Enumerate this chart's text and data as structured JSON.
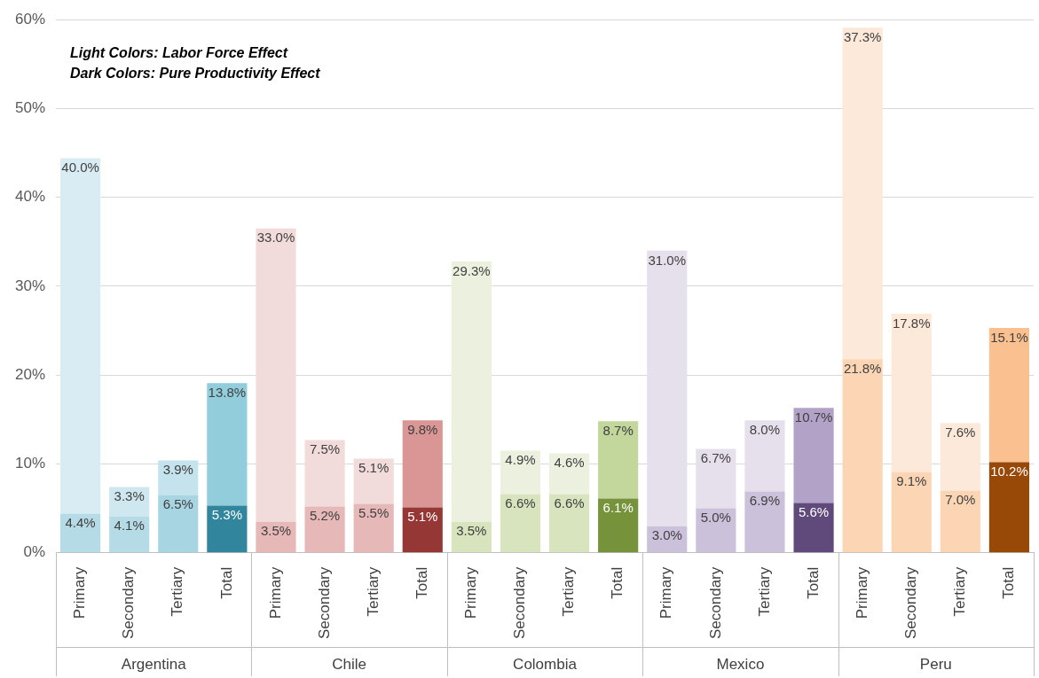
{
  "chart_data": {
    "type": "bar",
    "stacked": true,
    "title": "Light Colors: Labor Force Effect",
    "subtitle": "Dark Colors: Pure Productivity Effect",
    "categories": [
      "Primary",
      "Secondary",
      "Tertiary",
      "Total",
      "Primary",
      "Secondary",
      "Tertiary",
      "Total",
      "Primary",
      "Secondary",
      "Tertiary",
      "Total",
      "Primary",
      "Secondary",
      "Tertiary",
      "Total",
      "Primary",
      "Secondary",
      "Tertiary",
      "Total"
    ],
    "annotations": [
      "Argentina",
      "Chile",
      "Colombia",
      "Mexico",
      "Peru"
    ],
    "series": [
      {
        "values": [
          4.4,
          4.1,
          6.5,
          5.3,
          3.5,
          5.2,
          5.5,
          5.1,
          3.5,
          6.6,
          6.6,
          6.1,
          3.0,
          5.0,
          6.9,
          5.6,
          21.8,
          9.1,
          7.0,
          10.2
        ],
        "value_labels": [
          "4.4%",
          "4.1%",
          "6.5%",
          "5.3%",
          "3.5%",
          "5.2%",
          "5.5%",
          "5.1%",
          "3.5%",
          "6.6%",
          "6.6%",
          "6.1%",
          "3.0%",
          "5.0%",
          "6.9%",
          "5.6%",
          "21.8%",
          "9.1%",
          "7.0%",
          "10.2%"
        ],
        "colors": [
          "#b5dbe6",
          "#b5dbe6",
          "#a8d5e2",
          "#31859c",
          "#e6b9b8",
          "#e6b9b8",
          "#e6b9b8",
          "#953735",
          "#d7e4bd",
          "#d7e4bd",
          "#d7e4bd",
          "#76933c",
          "#ccc1da",
          "#ccc1da",
          "#ccc1da",
          "#604a7b",
          "#fcd5b5",
          "#fcd5b5",
          "#fcd5b5",
          "#984807"
        ]
      },
      {
        "values": [
          40.0,
          3.3,
          3.9,
          13.8,
          33.0,
          7.5,
          5.1,
          9.8,
          29.3,
          4.9,
          4.6,
          8.7,
          31.0,
          6.7,
          8.0,
          10.7,
          37.3,
          17.8,
          7.6,
          15.1
        ],
        "value_labels": [
          "40.0%",
          "3.3%",
          "3.9%",
          "13.8%",
          "33.0%",
          "7.5%",
          "5.1%",
          "9.8%",
          "29.3%",
          "4.9%",
          "4.6%",
          "8.7%",
          "31.0%",
          "6.7%",
          "8.0%",
          "10.7%",
          "37.3%",
          "17.8%",
          "7.6%",
          "15.1%"
        ],
        "colors": [
          "#daecf3",
          "#cfe7ef",
          "#c5e3ec",
          "#92cddc",
          "#f2dcdb",
          "#f2dcdb",
          "#f2dcdb",
          "#d99694",
          "#ebf1de",
          "#ebf1de",
          "#ebf1de",
          "#c3d69b",
          "#e6e0ec",
          "#e6e0ec",
          "#e6e0ec",
          "#b3a2c7",
          "#fde9d9",
          "#fde9d9",
          "#fde9d9",
          "#fac090"
        ]
      }
    ],
    "ylim": [
      0,
      60
    ],
    "yticks": [
      {
        "value": 0,
        "label": "0%"
      },
      {
        "value": 10,
        "label": "10%"
      },
      {
        "value": 20,
        "label": "20%"
      },
      {
        "value": 30,
        "label": "30%"
      },
      {
        "value": 40,
        "label": "40%"
      },
      {
        "value": 50,
        "label": "50%"
      },
      {
        "value": 60,
        "label": "60%"
      }
    ],
    "grid": "y",
    "legend": false
  }
}
